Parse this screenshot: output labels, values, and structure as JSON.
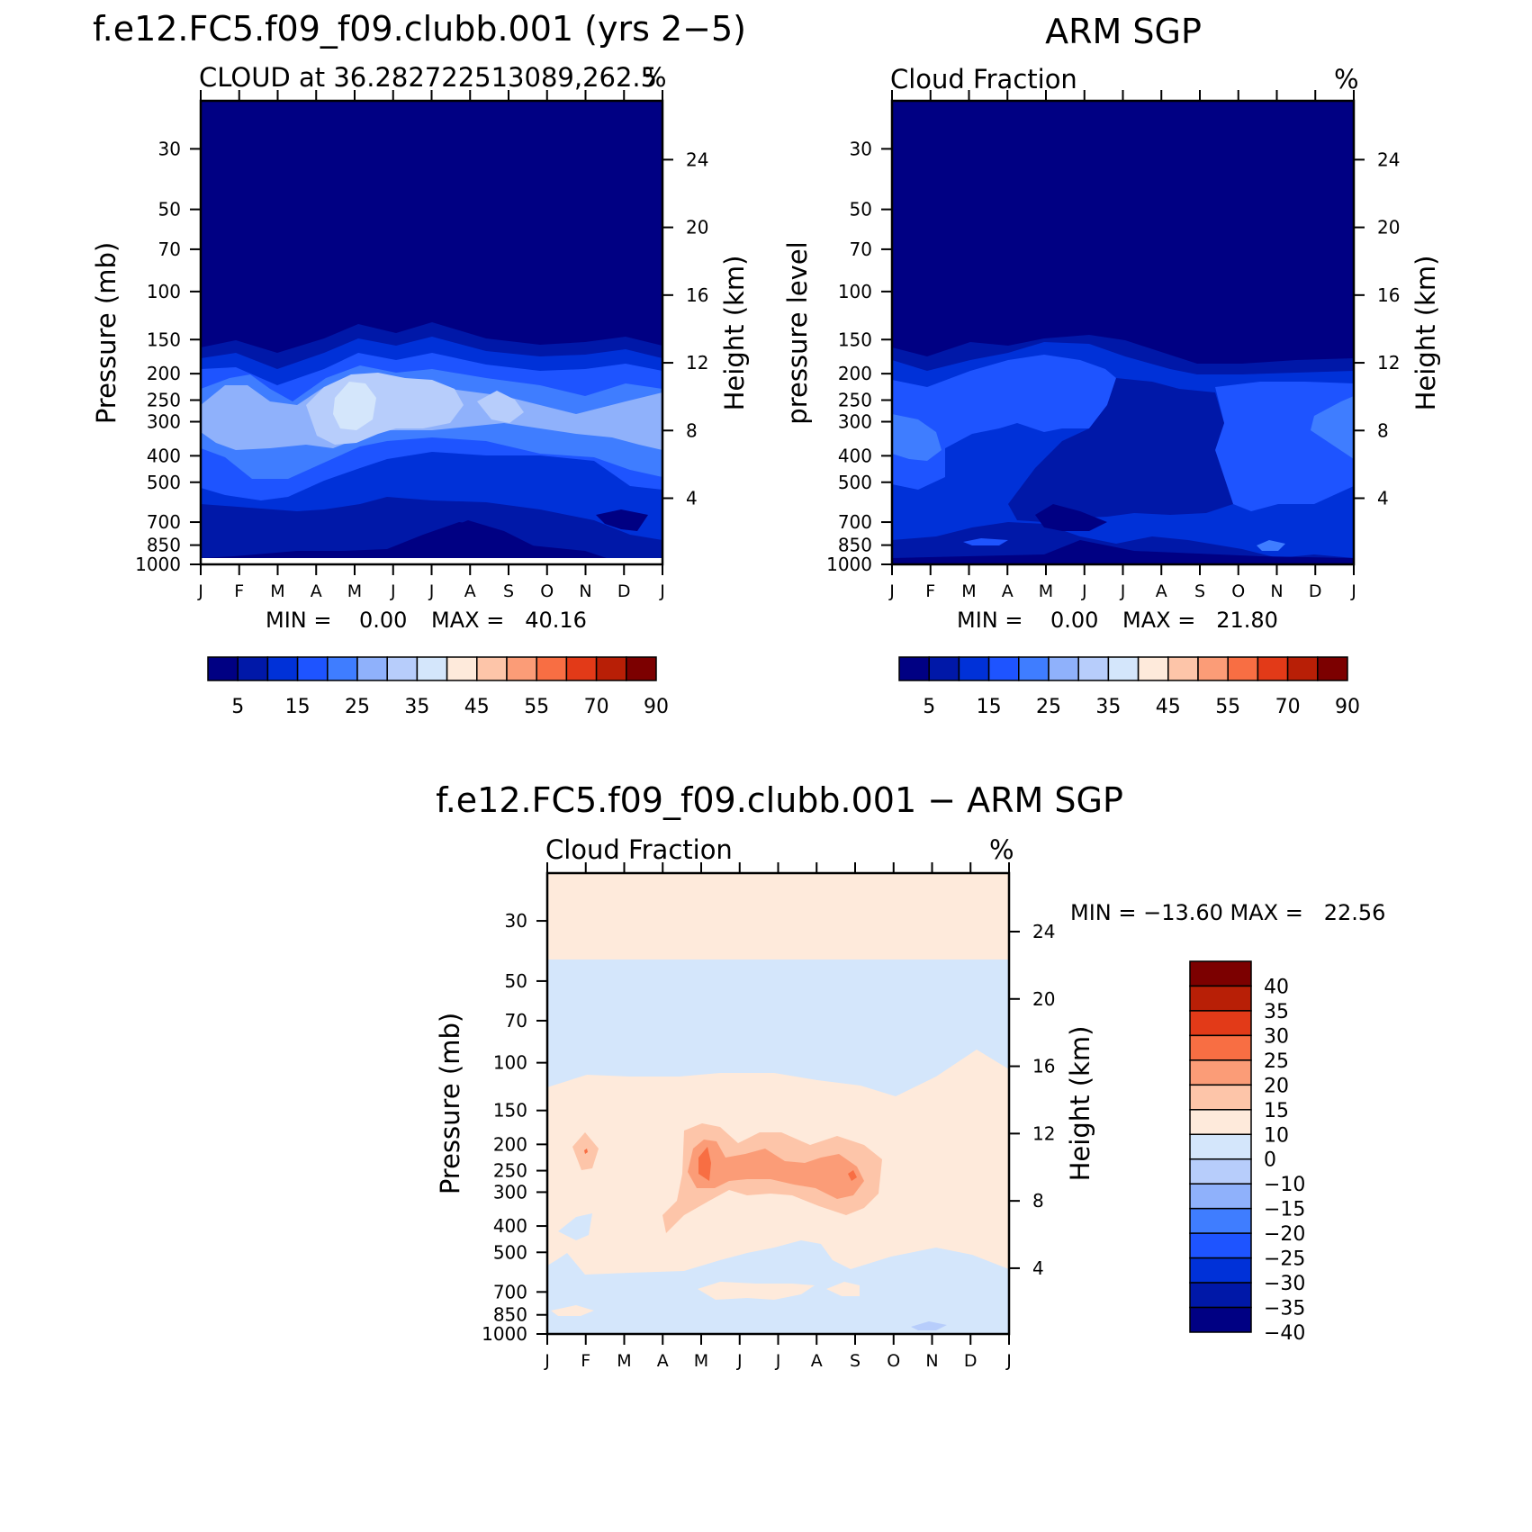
{
  "colors": {
    "model_levels": [
      "#000083",
      "#0018a8",
      "#0031d8",
      "#1e54ff",
      "#3f7dff",
      "#8fb1fb",
      "#b7cdfb",
      "#d4e6fb",
      "#feeadb",
      "#fdc5a9",
      "#fb9c77",
      "#f86e43",
      "#e23a18",
      "#b81f06",
      "#7c0000"
    ],
    "diff_levels": [
      "#000083",
      "#0018a8",
      "#0031d8",
      "#1e54ff",
      "#3f7dff",
      "#8fb1fb",
      "#b7cdfb",
      "#d4e6fb",
      "#feeadb",
      "#fdc5a9",
      "#fb9c77",
      "#f86e43",
      "#e23a18",
      "#b81f06",
      "#7c0000"
    ]
  },
  "axes": {
    "months": [
      "J",
      "F",
      "M",
      "A",
      "M",
      "J",
      "J",
      "A",
      "S",
      "O",
      "N",
      "D",
      "J"
    ],
    "pressure_ticks": [
      30,
      50,
      70,
      100,
      150,
      200,
      250,
      300,
      400,
      500,
      700,
      850,
      1000
    ],
    "height_ticks": [
      24,
      20,
      16,
      12,
      8,
      4
    ],
    "height_label": "Height (km)"
  },
  "chart_data": [
    {
      "id": "model",
      "type": "heatmap",
      "title": "f.e12.FC5.f09_f09.clubb.001 (yrs 2−5)",
      "subtitle_left": "CLOUD at 36.282722513089,262.5",
      "subtitle_right": "%",
      "ylabel": "Pressure (mb)",
      "ylabel_right": "Height (km)",
      "x_categories": [
        "J",
        "F",
        "M",
        "A",
        "M",
        "J",
        "J",
        "A",
        "S",
        "O",
        "N",
        "D",
        "J"
      ],
      "y_pressure_range": [
        1000,
        20
      ],
      "min_text": "MIN =    0.00",
      "max_text": "MAX =   40.16",
      "min": 0.0,
      "max": 40.16,
      "colorbar_labels": [
        "5",
        "15",
        "25",
        "35",
        "45",
        "55",
        "70",
        "90"
      ],
      "approx_peak": {
        "month": "May",
        "pressure_mb": 260,
        "value": 40
      }
    },
    {
      "id": "obs",
      "type": "heatmap",
      "title": "ARM SGP",
      "subtitle_left": "Cloud Fraction",
      "subtitle_right": "%",
      "ylabel": "pressure level",
      "ylabel_right": "Height (km)",
      "x_categories": [
        "J",
        "F",
        "M",
        "A",
        "M",
        "J",
        "J",
        "A",
        "S",
        "O",
        "N",
        "D",
        "J"
      ],
      "y_pressure_range": [
        1000,
        20
      ],
      "min_text": "MIN =    0.00",
      "max_text": "MAX =   21.80",
      "min": 0.0,
      "max": 21.8,
      "colorbar_labels": [
        "5",
        "15",
        "25",
        "35",
        "45",
        "55",
        "70",
        "90"
      ]
    },
    {
      "id": "diff",
      "type": "heatmap",
      "title": "f.e12.FC5.f09_f09.clubb.001 − ARM SGP",
      "subtitle_left": "Cloud Fraction",
      "subtitle_right": "%",
      "ylabel": "Pressure (mb)",
      "ylabel_right": "Height (km)",
      "x_categories": [
        "J",
        "F",
        "M",
        "A",
        "M",
        "J",
        "J",
        "A",
        "S",
        "O",
        "N",
        "D",
        "J"
      ],
      "y_pressure_range": [
        1000,
        20
      ],
      "minmax_text": "MIN = −13.60 MAX =   22.56",
      "min": -13.6,
      "max": 22.56,
      "colorbar_labels": [
        "40",
        "35",
        "30",
        "25",
        "20",
        "15",
        "10",
        "0",
        "−10",
        "−15",
        "−20",
        "−25",
        "−30",
        "−35",
        "−40"
      ]
    }
  ]
}
